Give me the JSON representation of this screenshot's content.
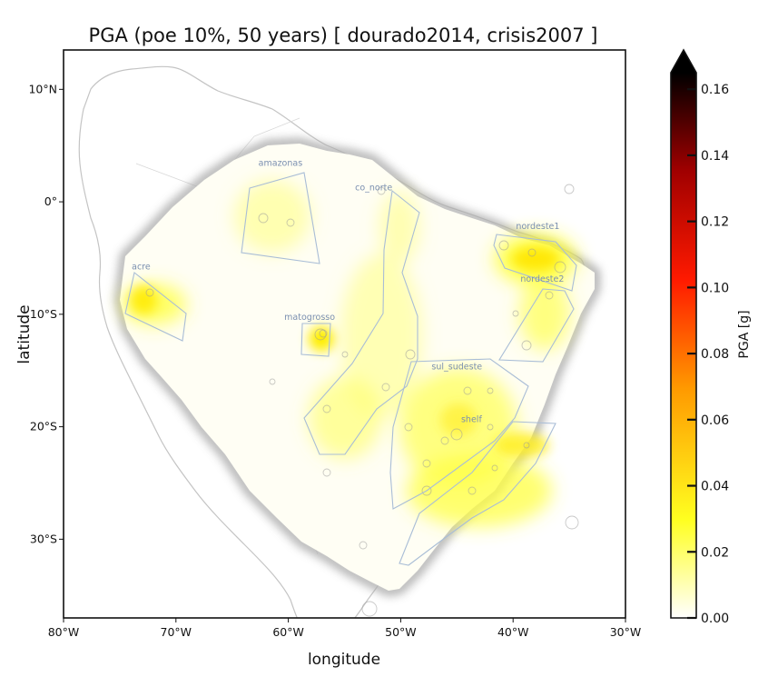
{
  "title": "PGA (poe 10%, 50 years) [ dourado2014, crisis2007 ]",
  "axes": {
    "xlabel": "longitude",
    "ylabel": "latitude",
    "xticks": [
      {
        "value": -80,
        "label": "80°W"
      },
      {
        "value": -70,
        "label": "70°W"
      },
      {
        "value": -60,
        "label": "60°W"
      },
      {
        "value": -50,
        "label": "50°W"
      },
      {
        "value": -40,
        "label": "40°W"
      },
      {
        "value": -30,
        "label": "30°W"
      }
    ],
    "yticks": [
      {
        "value": 10,
        "label": "10°N"
      },
      {
        "value": 0,
        "label": "0°"
      },
      {
        "value": -10,
        "label": "10°S"
      },
      {
        "value": -20,
        "label": "20°S"
      },
      {
        "value": -30,
        "label": "30°S"
      }
    ],
    "xlim": [
      -80,
      -30
    ],
    "ylim": [
      -37,
      13.5
    ]
  },
  "colorbar": {
    "label": "PGA [g]",
    "range": [
      0.0,
      0.165
    ],
    "extend": "max",
    "ticks": [
      "0.00",
      "0.02",
      "0.04",
      "0.06",
      "0.08",
      "0.10",
      "0.12",
      "0.14",
      "0.16"
    ],
    "colors": [
      "#ffffff",
      "#ffff20",
      "#ff9a00",
      "#ff1a00",
      "#a00000",
      "#000000"
    ]
  },
  "source_zones": [
    {
      "name": "amazonas",
      "label_at": [
        -60.7,
        3.2
      ]
    },
    {
      "name": "co_norte",
      "label_at": [
        -52.4,
        1.0
      ]
    },
    {
      "name": "nordeste1",
      "label_at": [
        -37.8,
        -2.4
      ]
    },
    {
      "name": "nordeste2",
      "label_at": [
        -37.4,
        -7.1
      ]
    },
    {
      "name": "acre",
      "label_at": [
        -73.1,
        -6.0
      ]
    },
    {
      "name": "matogrosso",
      "label_at": [
        -58.1,
        -10.5
      ]
    },
    {
      "name": "sul_sudeste",
      "label_at": [
        -45.0,
        -14.9
      ]
    },
    {
      "name": "shelf",
      "label_at": [
        -43.7,
        -19.6
      ]
    }
  ]
}
